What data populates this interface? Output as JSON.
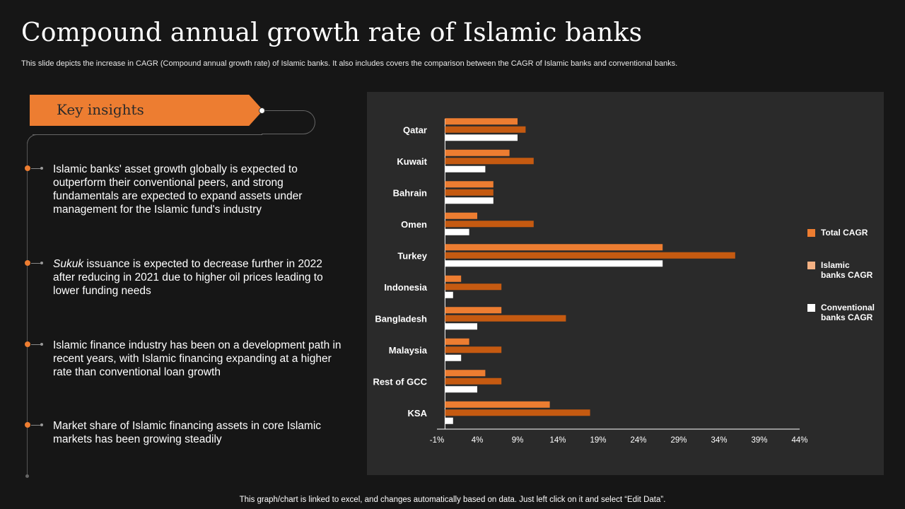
{
  "title": "Compound annual growth rate of Islamic banks",
  "subtitle": "This slide depicts the increase in CAGR (Compound annual growth rate) of Islamic banks. It also includes covers the comparison between the CAGR of Islamic banks and conventional banks.",
  "key_insights": {
    "label": "Key insights",
    "items": [
      {
        "emphasis": "",
        "text": "Islamic banks' asset growth globally is expected to outperform their conventional peers, and strong fundamentals are expected to expand assets under management for the Islamic fund's industry"
      },
      {
        "emphasis": "Sukuk",
        "text": " issuance is expected to decrease further in 2022 after reducing in 2021 due to higher oil prices leading to lower funding needs"
      },
      {
        "emphasis": "",
        "text": "Islamic finance industry has been on a development path in recent years, with Islamic financing expanding at a higher rate than conventional loan growth"
      },
      {
        "emphasis": "",
        "text": "Market share of Islamic financing assets in core Islamic markets has been growing steadily"
      }
    ]
  },
  "footer": "This graph/chart is linked to excel, and changes automatically based on data. Just left click on it and select “Edit Data”.",
  "colors": {
    "accent": "#ed7d31",
    "total": "#ed7d31",
    "islamic": "#c55a11",
    "conventional": "#ffffff",
    "legend_islamic": "#f4b183"
  },
  "chart_data": {
    "type": "bar",
    "orientation": "horizontal",
    "categories": [
      "Qatar",
      "Kuwait",
      "Bahrain",
      "Omen",
      "Turkey",
      "Indonesia",
      "Bangladesh",
      "Malaysia",
      "Rest of GCC",
      "KSA"
    ],
    "series": [
      {
        "name": "Total CAGR",
        "legend_label": [
          "Total CAGR"
        ],
        "values": [
          9,
          8,
          6,
          4,
          27,
          2,
          7,
          3,
          5,
          13
        ]
      },
      {
        "name": "Islamic banks CAGR",
        "legend_label": [
          "Islamic",
          "banks CAGR"
        ],
        "values": [
          10,
          11,
          6,
          11,
          36,
          7,
          15,
          7,
          7,
          18
        ]
      },
      {
        "name": "Conventional banks CAGR",
        "legend_label": [
          "Conventional",
          "banks CAGR"
        ],
        "values": [
          9,
          5,
          6,
          3,
          27,
          1,
          4,
          2,
          4,
          1
        ]
      }
    ],
    "xticks": [
      "-1%",
      "4%",
      "9%",
      "14%",
      "19%",
      "24%",
      "29%",
      "34%",
      "39%",
      "44%"
    ],
    "xlim": [
      -1,
      44
    ],
    "legend_position": "right"
  }
}
